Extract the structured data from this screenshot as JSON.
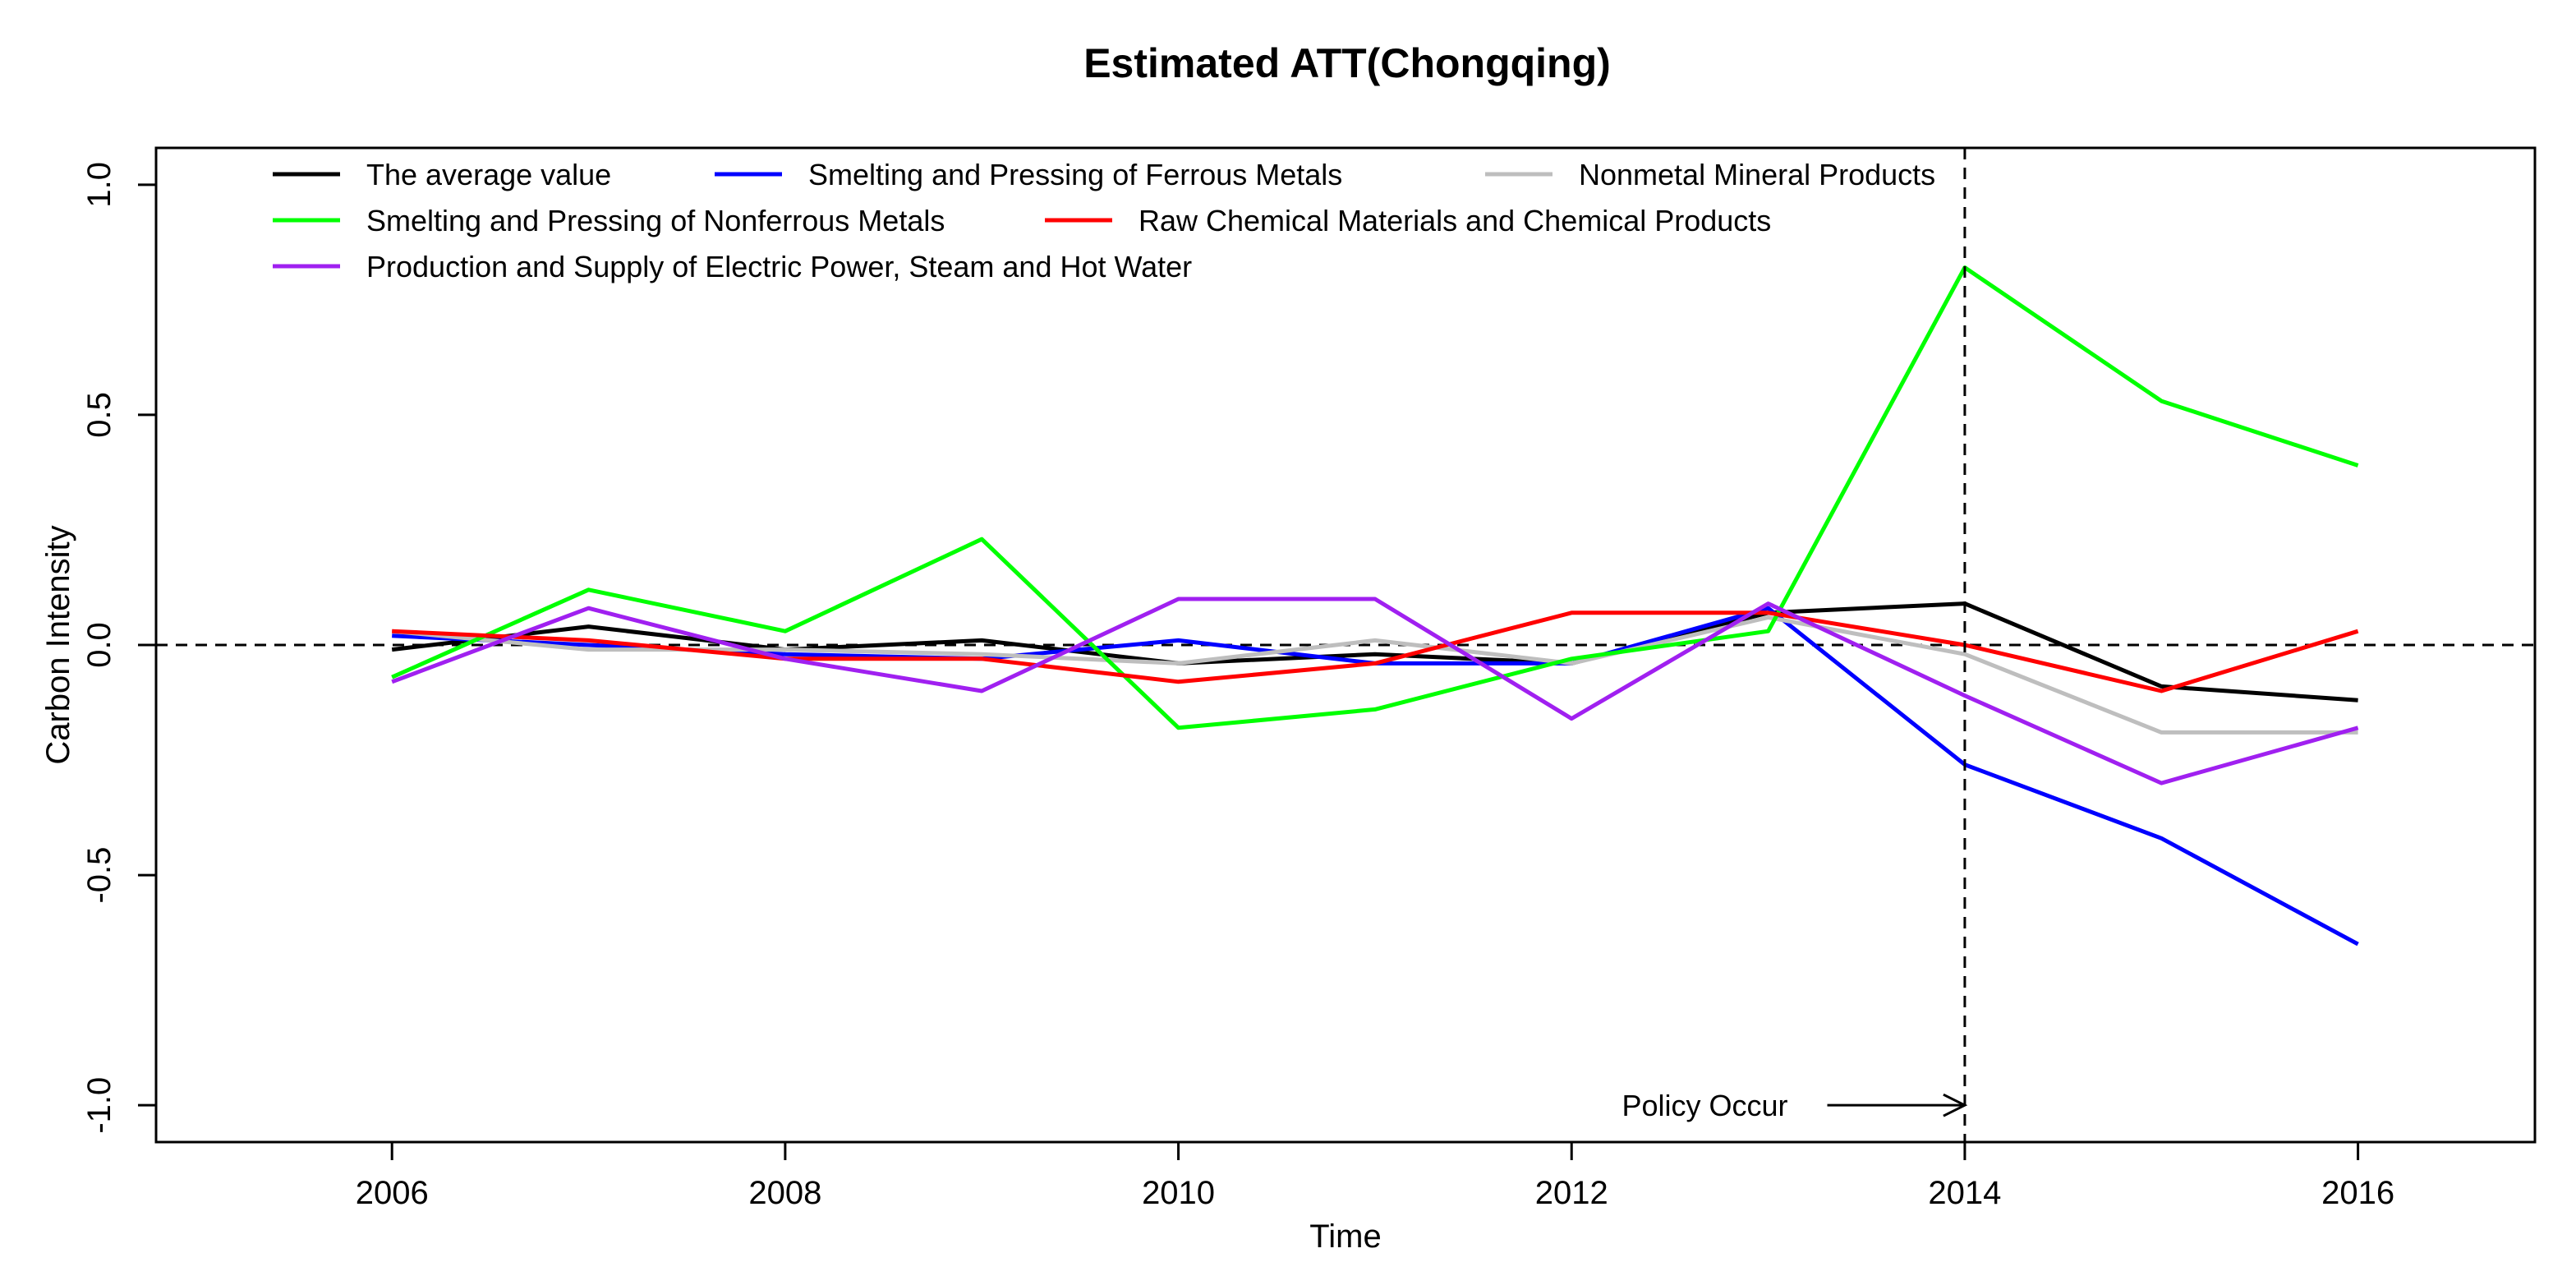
{
  "chart_data": {
    "type": "line",
    "title": "Estimated ATT(Chongqing)",
    "xlabel": "Time",
    "ylabel": "Carbon Intensity",
    "x": [
      2006,
      2007,
      2008,
      2009,
      2010,
      2011,
      2012,
      2013,
      2014,
      2015,
      2016
    ],
    "xlim": [
      2004.8,
      2016.9
    ],
    "ylim": [
      -1.08,
      1.08
    ],
    "x_ticks": [
      "2006",
      "2008",
      "2010",
      "2012",
      "2014",
      "2016"
    ],
    "y_ticks": [
      "-1.0",
      "-0.5",
      "0.0",
      "0.5",
      "1.0"
    ],
    "grid": false,
    "legend_position": "top-left",
    "reference_line_y": 0,
    "policy_year": 2014,
    "annotations": [
      {
        "text": "Policy Occur",
        "x": 2013.1,
        "y": -1.0
      }
    ],
    "series": [
      {
        "name": "The average value",
        "color": "#000000",
        "values": [
          -0.01,
          0.04,
          -0.01,
          0.01,
          -0.04,
          -0.02,
          -0.04,
          0.07,
          0.09,
          -0.09,
          -0.12
        ]
      },
      {
        "name": "Smelting and Pressing of Ferrous Metals",
        "color": "#0000ff",
        "values": [
          0.02,
          0.0,
          -0.02,
          -0.03,
          0.01,
          -0.04,
          -0.04,
          0.08,
          -0.26,
          -0.42,
          -0.65
        ]
      },
      {
        "name": "Nonmetal Mineral Products",
        "color": "#bebebe",
        "values": [
          0.03,
          -0.01,
          -0.01,
          -0.02,
          -0.04,
          0.01,
          -0.04,
          0.06,
          -0.02,
          -0.19,
          -0.19
        ]
      },
      {
        "name": "Smelting and Pressing of Nonferrous Metals",
        "color": "#00ff00",
        "values": [
          -0.07,
          0.12,
          0.03,
          0.23,
          -0.18,
          -0.14,
          -0.03,
          0.03,
          0.82,
          0.53,
          0.39
        ]
      },
      {
        "name": "Raw Chemical Materials and Chemical Products",
        "color": "#ff0000",
        "values": [
          0.03,
          0.01,
          -0.03,
          -0.03,
          -0.08,
          -0.04,
          0.07,
          0.07,
          0.0,
          -0.1,
          0.03
        ]
      },
      {
        "name": "Production and Supply of Electric Power, Steam and Hot Water",
        "color": "#a020f0",
        "values": [
          -0.08,
          0.08,
          -0.03,
          -0.1,
          0.1,
          0.1,
          -0.16,
          0.09,
          -0.11,
          -0.3,
          -0.18
        ]
      }
    ]
  }
}
